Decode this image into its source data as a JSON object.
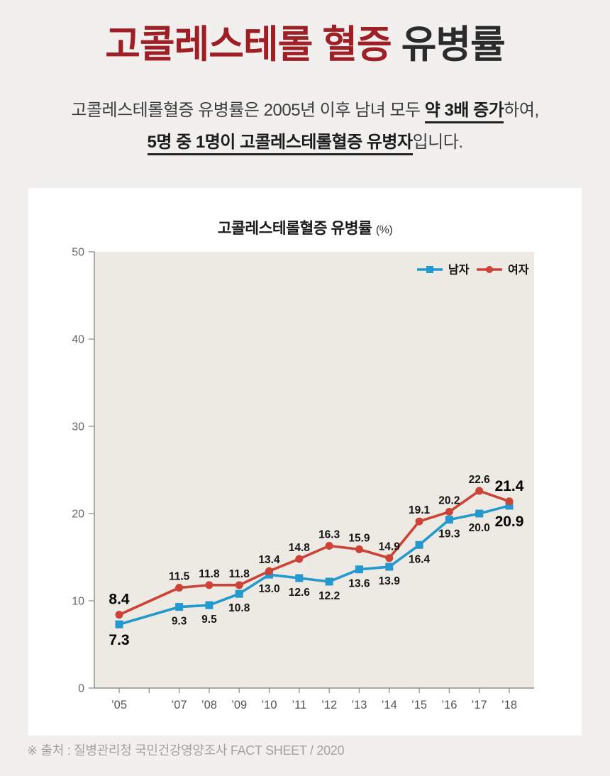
{
  "page": {
    "background": "#f1f0ee"
  },
  "header": {
    "title_highlight": "고콜레스테롤 혈증",
    "title_rest": " 유병률",
    "title_highlight_color": "#9f1f27",
    "subtitle": {
      "line1_prefix": "고콜레스테롤혈증 유병률은 2005년 이후 남녀 모두 ",
      "line1_emphasis": "약 3배 증가",
      "line1_suffix": "하여,",
      "line2_emphasis": "5명 중 1명이 고콜레스테롤혈증 유병자",
      "line2_suffix": "입니다."
    }
  },
  "chart_card": {
    "title": "고콜레스테롤혈증 유병률",
    "title_unit": "(%)"
  },
  "chart_data": {
    "type": "line",
    "title": "고콜레스테롤혈증 유병률 (%)",
    "x_ticks": [
      "’05",
      "",
      "’07",
      "’08",
      "’09",
      "’10",
      "’11",
      "’12",
      "’13",
      "’14",
      "’15",
      "’16",
      "’17",
      "’18"
    ],
    "tick_indices": [
      0,
      2,
      3,
      4,
      5,
      6,
      7,
      8,
      9,
      10,
      11,
      12,
      13
    ],
    "series": [
      {
        "name": "남자",
        "color": "#2499cd",
        "marker": "square",
        "label_side": "below",
        "values": [
          7.3,
          9.3,
          9.5,
          10.8,
          13.0,
          12.6,
          12.2,
          13.6,
          13.9,
          16.4,
          19.3,
          20.0,
          20.9
        ]
      },
      {
        "name": "여자",
        "color": "#cc4337",
        "marker": "circle",
        "label_side": "above",
        "values": [
          8.4,
          11.5,
          11.8,
          11.8,
          13.4,
          14.8,
          16.3,
          15.9,
          14.9,
          19.1,
          20.2,
          22.6,
          21.4
        ]
      }
    ],
    "ylim": [
      0,
      50
    ],
    "y_ticks": [
      0,
      10,
      20,
      30,
      40,
      50
    ],
    "emphasized_value_indices": [
      0,
      12
    ],
    "legend_position": "top-right",
    "grid": false,
    "plot_background": "#edeae4",
    "axis_color": "#8f8f8f"
  },
  "footer": {
    "source": "※ 출처 : 질병관리청 국민건강영양조사 FACT SHEET / 2020"
  }
}
